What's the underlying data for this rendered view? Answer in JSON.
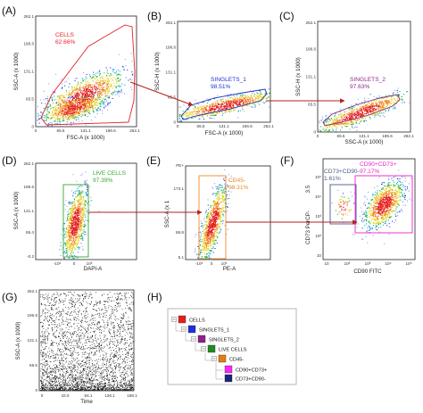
{
  "chart_data": [
    {
      "type": "scatter",
      "letter": "(A)",
      "xlabel": "FSC-A (x 1000)",
      "ylabel": "SSC-A (x 1000)",
      "xticks": [
        "0",
        "65.5",
        "131.1",
        "196.6",
        "262.1"
      ],
      "yticks": [
        "0",
        "65.5",
        "131.1",
        "196.6",
        "262.1"
      ],
      "gates": [
        {
          "label": "CELLS",
          "value": "62.66%",
          "color": "#e8202a"
        }
      ],
      "colormap": "density-rainbow"
    },
    {
      "type": "scatter",
      "letter": "(B)",
      "xlabel": "FSC-A (x 1000)",
      "ylabel": "SSC-H (x 1000)",
      "xticks": [
        "0",
        "65.5",
        "131.1",
        "196.6",
        "262.1"
      ],
      "yticks": [
        "0",
        "65.5",
        "131.1",
        "196.6",
        "262.1"
      ],
      "gates": [
        {
          "label": "SINGLETS_1",
          "value": "98.51%",
          "color": "#2233cc"
        }
      ],
      "colormap": "density-rainbow"
    },
    {
      "type": "scatter",
      "letter": "(C)",
      "xlabel": "SSC-A (x 1000)",
      "ylabel": "SSC-H (x 1000)",
      "xticks": [
        "0",
        "65.5",
        "131.1",
        "196.6",
        "262.1"
      ],
      "yticks": [
        "0",
        "65.5",
        "131.1",
        "196.6",
        "262.1"
      ],
      "gates": [
        {
          "label": "SINGLETS_2",
          "value": "97.63%",
          "color": "#8b2a8b"
        }
      ],
      "colormap": "density-rainbow"
    },
    {
      "type": "scatter",
      "letter": "(D)",
      "xlabel": "DAPI-A",
      "ylabel": "SSC-A (x 1000)",
      "xticks": [
        "-10³",
        "0",
        "10³"
      ],
      "yticks": [
        "-0.2",
        "65.4",
        "131.1",
        "196.6",
        "262.1"
      ],
      "gates": [
        {
          "label": "LIVE CELLS",
          "value": "97.39%",
          "color": "#33aa33"
        }
      ],
      "colormap": "density-rainbow"
    },
    {
      "type": "scatter",
      "letter": "(E)",
      "xlabel": "PE-A",
      "ylabel": "SSC-A (x 1",
      "xticks": [
        "-10³",
        "0",
        "10³"
      ],
      "yticks": [
        "5.1",
        "86.8",
        "173.1",
        "PE+"
      ],
      "gates": [
        {
          "label": "CD45-",
          "value": "99.31%",
          "color": "#f08a28"
        }
      ],
      "colormap": "density-rainbow"
    },
    {
      "type": "scatter",
      "letter": "(F)",
      "xlabel": "CD90 FITC",
      "ylabel": "CD73 PerCP-",
      "ytick_extra": "3.5",
      "xticks": [
        "10",
        "10²",
        "10³",
        "10⁴",
        "10⁵"
      ],
      "yticks": [
        "10",
        "10²",
        "10³",
        "10⁴",
        "10⁵"
      ],
      "gates": [
        {
          "label": "CD73+CD90-",
          "value": "1.61%",
          "color": "#4a5a8a"
        },
        {
          "label": "CD90+CD73+",
          "value": "97.17%",
          "color": "#ee22cc"
        }
      ],
      "colormap": "density-rainbow"
    },
    {
      "type": "scatter",
      "letter": "(G)",
      "xlabel": "Time",
      "ylabel": "SSC-A (x 1000)",
      "xticks": [
        "0",
        "42.0",
        "84.1",
        "126.1",
        "168.1"
      ],
      "yticks": [
        "0",
        "65.5",
        "131.1",
        "196.6",
        "262.1"
      ],
      "colormap": "black"
    }
  ],
  "hierarchy": {
    "letter": "(H)",
    "nodes": [
      {
        "label": "CELLS",
        "color": "#e81c1c"
      },
      {
        "label": "SINGLETS_1",
        "color": "#1f2fdd"
      },
      {
        "label": "SINGLETS_2",
        "color": "#8e1e8e"
      },
      {
        "label": "LIVE CELLS",
        "color": "#1f8a1f"
      },
      {
        "label": "CD45-",
        "color": "#e87a14"
      },
      {
        "label": "CD90+CD73+",
        "color": "#ff22ff"
      },
      {
        "label": "CD73+CD90-",
        "color": "#1a237e"
      }
    ]
  },
  "arrow_color": "#b22222"
}
